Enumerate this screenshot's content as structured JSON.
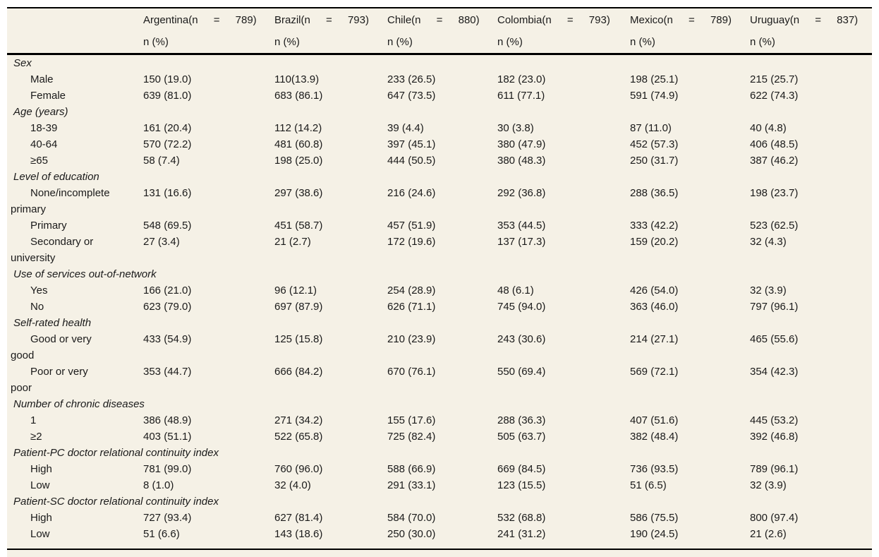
{
  "meta": {
    "description": "Demographic and health characteristics table by country",
    "paper_background_color": "#f5f1e6",
    "rule_color": "#000000",
    "text_color": "#1a1a1a"
  },
  "table": {
    "columns": [
      {
        "header": "Argentina(n = 789)",
        "subheader": "n (%)"
      },
      {
        "header": "Brazil(n = 793)",
        "subheader": "n (%)"
      },
      {
        "header": "Chile(n = 880)",
        "subheader": "n (%)"
      },
      {
        "header": "Colombia(n = 793)",
        "subheader": "n (%)"
      },
      {
        "header": "Mexico(n = 789)",
        "subheader": "n (%)"
      },
      {
        "header": "Uruguay(n = 837)",
        "subheader": "n (%)"
      }
    ],
    "rows": [
      {
        "type": "section",
        "label": "Sex"
      },
      {
        "type": "data",
        "label": "Male",
        "values": [
          "150 (19.0)",
          "110(13.9)",
          "233 (26.5)",
          "182 (23.0)",
          "198 (25.1)",
          "215 (25.7)"
        ]
      },
      {
        "type": "data",
        "label": "Female",
        "values": [
          "639 (81.0)",
          "683 (86.1)",
          "647 (73.5)",
          "611 (77.1)",
          "591 (74.9)",
          "622 (74.3)"
        ]
      },
      {
        "type": "section",
        "label": "Age (years)"
      },
      {
        "type": "data",
        "label": "18-39",
        "values": [
          "161 (20.4)",
          "112 (14.2)",
          "39 (4.4)",
          "30 (3.8)",
          "87 (11.0)",
          "40 (4.8)"
        ]
      },
      {
        "type": "data",
        "label": "40-64",
        "values": [
          "570 (72.2)",
          "481 (60.8)",
          "397 (45.1)",
          "380 (47.9)",
          "452 (57.3)",
          "406 (48.5)"
        ]
      },
      {
        "type": "data",
        "label": "≥65",
        "values": [
          "58 (7.4)",
          "198 (25.0)",
          "444 (50.5)",
          "380 (48.3)",
          "250 (31.7)",
          "387 (46.2)"
        ]
      },
      {
        "type": "section",
        "label": "Level of education"
      },
      {
        "type": "data",
        "label": "None/incomplete\nprimary",
        "values": [
          "131 (16.6)",
          "297 (38.6)",
          "216 (24.6)",
          "292 (36.8)",
          "288 (36.5)",
          "198 (23.7)"
        ]
      },
      {
        "type": "data",
        "label": "Primary",
        "values": [
          "548 (69.5)",
          "451 (58.7)",
          "457 (51.9)",
          "353 (44.5)",
          "333 (42.2)",
          "523 (62.5)"
        ]
      },
      {
        "type": "data",
        "label": "Secondary or\nuniversity",
        "values": [
          "27 (3.4)",
          "21 (2.7)",
          "172 (19.6)",
          "137 (17.3)",
          "159 (20.2)",
          "32 (4.3)"
        ]
      },
      {
        "type": "section",
        "label": "Use of services out-of-network"
      },
      {
        "type": "data",
        "label": "Yes",
        "values": [
          "166 (21.0)",
          "96 (12.1)",
          "254 (28.9)",
          "48 (6.1)",
          "426 (54.0)",
          "32 (3.9)"
        ]
      },
      {
        "type": "data",
        "label": "No",
        "values": [
          "623 (79.0)",
          "697 (87.9)",
          "626 (71.1)",
          "745 (94.0)",
          "363 (46.0)",
          "797 (96.1)"
        ]
      },
      {
        "type": "section",
        "label": "Self-rated health"
      },
      {
        "type": "data",
        "label": "Good or very\ngood",
        "values": [
          "433 (54.9)",
          "125 (15.8)",
          "210 (23.9)",
          "243 (30.6)",
          "214 (27.1)",
          "465 (55.6)"
        ]
      },
      {
        "type": "data",
        "label": "Poor or very\npoor",
        "values": [
          "353 (44.7)",
          "666 (84.2)",
          "670 (76.1)",
          "550 (69.4)",
          "569 (72.1)",
          "354 (42.3)"
        ]
      },
      {
        "type": "section",
        "label": "Number of chronic diseases"
      },
      {
        "type": "data",
        "label": "1",
        "values": [
          "386 (48.9)",
          "271 (34.2)",
          "155 (17.6)",
          "288 (36.3)",
          "407 (51.6)",
          "445 (53.2)"
        ]
      },
      {
        "type": "data",
        "label": "≥2",
        "values": [
          "403 (51.1)",
          "522 (65.8)",
          "725 (82.4)",
          "505 (63.7)",
          "382 (48.4)",
          "392 (46.8)"
        ]
      },
      {
        "type": "section",
        "label": "Patient-PC doctor relational continuity index"
      },
      {
        "type": "data",
        "label": "High",
        "values": [
          "781 (99.0)",
          "760 (96.0)",
          "588 (66.9)",
          "669 (84.5)",
          "736 (93.5)",
          "789 (96.1)"
        ]
      },
      {
        "type": "data",
        "label": "Low",
        "values": [
          "8 (1.0)",
          "32 (4.0)",
          "291 (33.1)",
          "123 (15.5)",
          "51 (6.5)",
          "32 (3.9)"
        ]
      },
      {
        "type": "section",
        "label": "Patient-SC doctor relational continuity index"
      },
      {
        "type": "data",
        "label": "High",
        "values": [
          "727 (93.4)",
          "627 (81.4)",
          "584 (70.0)",
          "532 (68.8)",
          "586 (75.5)",
          "800 (97.4)"
        ]
      },
      {
        "type": "data",
        "label": "Low",
        "values": [
          "51 (6.6)",
          "143 (18.6)",
          "250 (30.0)",
          "241 (31.2)",
          "190 (24.5)",
          "21 (2.6)"
        ]
      }
    ]
  }
}
